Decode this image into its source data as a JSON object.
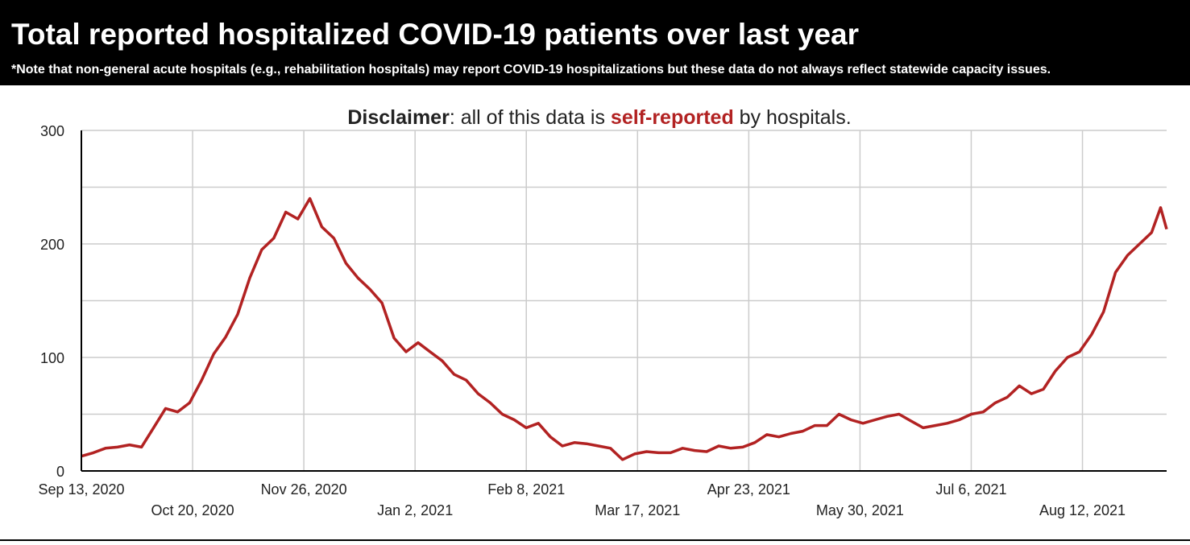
{
  "chart_data": {
    "type": "line",
    "title": "Total reported hospitalized COVID-19 patients over last year",
    "note": "*Note that non-general acute hospitals (e.g., rehabilitation hospitals) may report COVID-19 hospitalizations but these data do not always reflect statewide capacity issues.",
    "subtitle": [
      "Disclaimer",
      ": all of this data is ",
      "self-reported",
      " by hospitals."
    ],
    "x": [
      "2020-09-13",
      "2020-09-17",
      "2020-09-21",
      "2020-09-25",
      "2020-09-29",
      "2020-10-03",
      "2020-10-07",
      "2020-10-11",
      "2020-10-15",
      "2020-10-19",
      "2020-10-23",
      "2020-10-27",
      "2020-10-31",
      "2020-11-04",
      "2020-11-08",
      "2020-11-12",
      "2020-11-16",
      "2020-11-20",
      "2020-11-24",
      "2020-11-28",
      "2020-12-02",
      "2020-12-06",
      "2020-12-10",
      "2020-12-14",
      "2020-12-18",
      "2020-12-22",
      "2020-12-26",
      "2020-12-30",
      "2021-01-03",
      "2021-01-07",
      "2021-01-11",
      "2021-01-15",
      "2021-01-19",
      "2021-01-23",
      "2021-01-27",
      "2021-01-31",
      "2021-02-04",
      "2021-02-08",
      "2021-02-12",
      "2021-02-16",
      "2021-02-20",
      "2021-02-24",
      "2021-02-28",
      "2021-03-04",
      "2021-03-08",
      "2021-03-12",
      "2021-03-16",
      "2021-03-20",
      "2021-03-24",
      "2021-03-28",
      "2021-04-01",
      "2021-04-05",
      "2021-04-09",
      "2021-04-13",
      "2021-04-17",
      "2021-04-21",
      "2021-04-25",
      "2021-04-29",
      "2021-05-03",
      "2021-05-07",
      "2021-05-11",
      "2021-05-15",
      "2021-05-19",
      "2021-05-23",
      "2021-05-27",
      "2021-05-31",
      "2021-06-04",
      "2021-06-08",
      "2021-06-12",
      "2021-06-16",
      "2021-06-20",
      "2021-06-24",
      "2021-06-28",
      "2021-07-02",
      "2021-07-06",
      "2021-07-10",
      "2021-07-14",
      "2021-07-18",
      "2021-07-22",
      "2021-07-26",
      "2021-07-30",
      "2021-08-03",
      "2021-08-07",
      "2021-08-11",
      "2021-08-15",
      "2021-08-19",
      "2021-08-23",
      "2021-08-27",
      "2021-08-31",
      "2021-09-04",
      "2021-09-07",
      "2021-09-09"
    ],
    "series": [
      {
        "name": "Hospitalized COVID-19 patients",
        "color": "#b22222",
        "values": [
          13,
          16,
          20,
          21,
          23,
          21,
          38,
          55,
          52,
          60,
          80,
          103,
          118,
          138,
          170,
          195,
          205,
          228,
          222,
          240,
          215,
          205,
          183,
          170,
          160,
          148,
          117,
          105,
          113,
          105,
          97,
          85,
          80,
          68,
          60,
          50,
          45,
          38,
          42,
          30,
          22,
          25,
          24,
          22,
          20,
          10,
          15,
          17,
          16,
          16,
          20,
          18,
          17,
          22,
          20,
          21,
          25,
          32,
          30,
          33,
          35,
          40,
          40,
          50,
          45,
          42,
          45,
          48,
          50,
          44,
          38,
          40,
          42,
          45,
          50,
          52,
          60,
          65,
          75,
          68,
          72,
          88,
          100,
          105,
          120,
          140,
          175,
          190,
          200,
          210,
          232,
          213
        ]
      }
    ],
    "xlim": [
      "2020-09-13",
      "2021-09-09"
    ],
    "xticks": [
      {
        "value": "2020-09-13",
        "label": "Sep 13, 2020"
      },
      {
        "value": "2020-10-20",
        "label": "Oct 20, 2020"
      },
      {
        "value": "2020-11-26",
        "label": "Nov 26, 2020"
      },
      {
        "value": "2021-01-02",
        "label": "Jan 2, 2021"
      },
      {
        "value": "2021-02-08",
        "label": "Feb 8, 2021"
      },
      {
        "value": "2021-03-17",
        "label": "Mar 17, 2021"
      },
      {
        "value": "2021-04-23",
        "label": "Apr 23, 2021"
      },
      {
        "value": "2021-05-30",
        "label": "May 30, 2021"
      },
      {
        "value": "2021-07-06",
        "label": "Jul 6, 2021"
      },
      {
        "value": "2021-08-12",
        "label": "Aug 12, 2021"
      }
    ],
    "ylim": [
      0,
      300
    ],
    "yticks": [
      0,
      100,
      200,
      300
    ],
    "yminor_grid": [
      50,
      150,
      250
    ],
    "grid": true
  }
}
